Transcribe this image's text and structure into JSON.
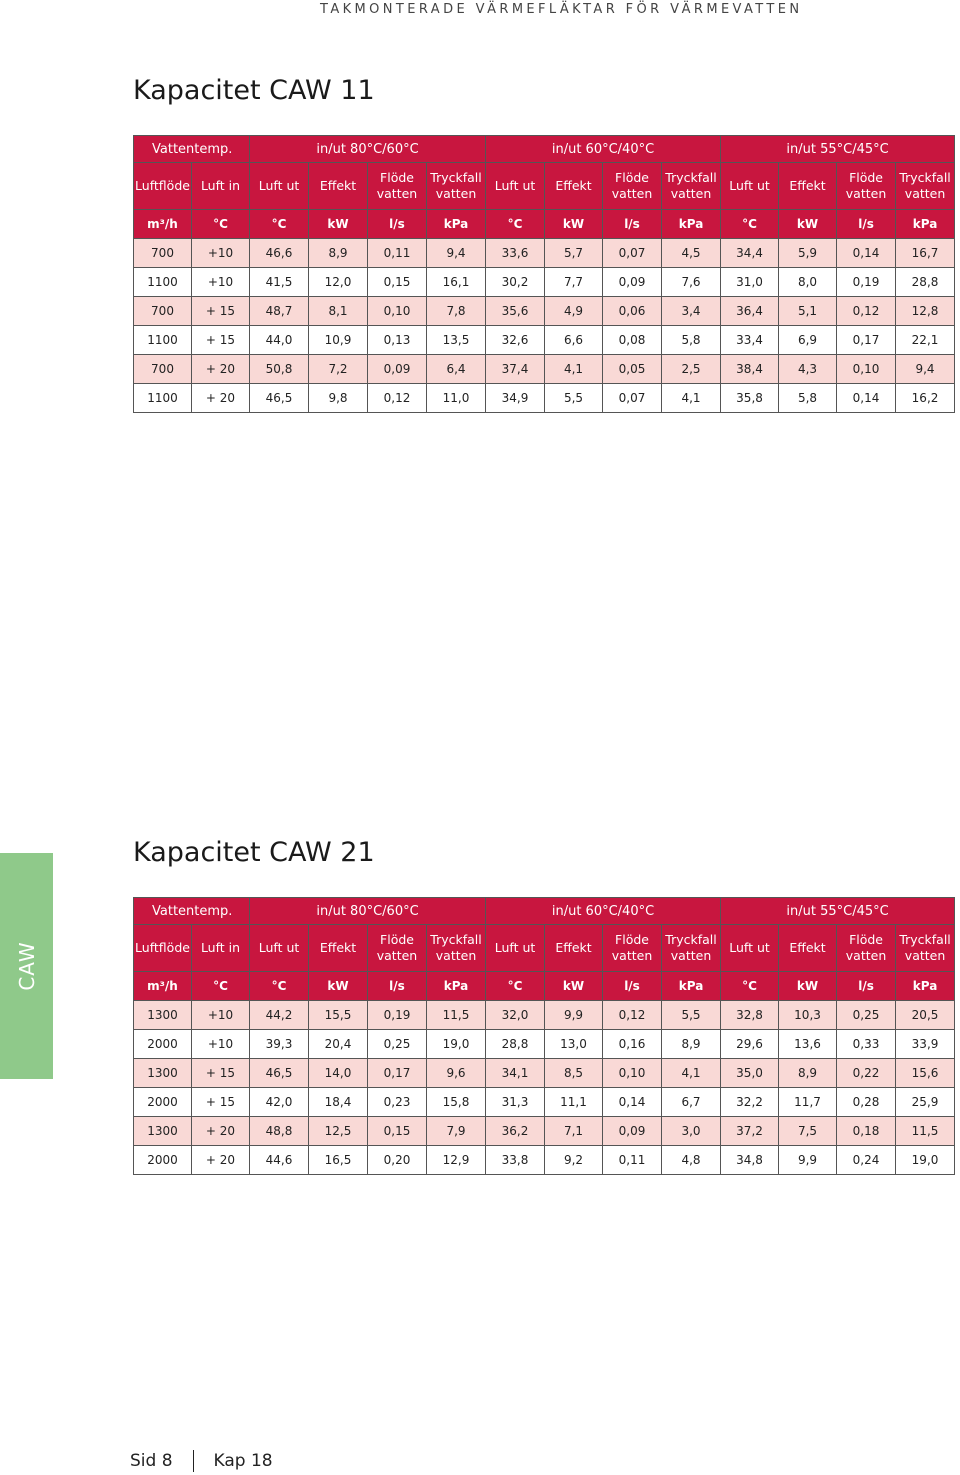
{
  "header": {
    "running_title": "TAKMONTERADE VÄRMEFLÄKTAR FÖR VÄRMEVATTEN"
  },
  "side_tab": {
    "label": "CAW"
  },
  "footer": {
    "page": "Sid 8",
    "chapter": "Kap 18"
  },
  "tables": [
    {
      "title": "Kapacitet CAW 11",
      "group_label": "Vattentemp.",
      "groups": [
        "in/ut 80°C/60°C",
        "in/ut 60°C/40°C",
        "in/ut 55°C/45°C"
      ],
      "columns": [
        "Luftflöde",
        "Luft in",
        "Luft ut",
        "Effekt",
        "Flöde vatten",
        "Tryckfall vatten",
        "Luft ut",
        "Effekt",
        "Flöde vatten",
        "Tryckfall vatten",
        "Luft ut",
        "Effekt",
        "Flöde vatten",
        "Tryckfall vatten"
      ],
      "units": [
        "m³/h",
        "°C",
        "°C",
        "kW",
        "l/s",
        "kPa",
        "°C",
        "kW",
        "l/s",
        "kPa",
        "°C",
        "kW",
        "l/s",
        "kPa"
      ],
      "rows": [
        [
          "700",
          "+10",
          "46,6",
          "8,9",
          "0,11",
          "9,4",
          "33,6",
          "5,7",
          "0,07",
          "4,5",
          "34,4",
          "5,9",
          "0,14",
          "16,7"
        ],
        [
          "1100",
          "+10",
          "41,5",
          "12,0",
          "0,15",
          "16,1",
          "30,2",
          "7,7",
          "0,09",
          "7,6",
          "31,0",
          "8,0",
          "0,19",
          "28,8"
        ],
        [
          "700",
          "+ 15",
          "48,7",
          "8,1",
          "0,10",
          "7,8",
          "35,6",
          "4,9",
          "0,06",
          "3,4",
          "36,4",
          "5,1",
          "0,12",
          "12,8"
        ],
        [
          "1100",
          "+ 15",
          "44,0",
          "10,9",
          "0,13",
          "13,5",
          "32,6",
          "6,6",
          "0,08",
          "5,8",
          "33,4",
          "6,9",
          "0,17",
          "22,1"
        ],
        [
          "700",
          "+ 20",
          "50,8",
          "7,2",
          "0,09",
          "6,4",
          "37,4",
          "4,1",
          "0,05",
          "2,5",
          "38,4",
          "4,3",
          "0,10",
          "9,4"
        ],
        [
          "1100",
          "+ 20",
          "46,5",
          "9,8",
          "0,12",
          "11,0",
          "34,9",
          "5,5",
          "0,07",
          "4,1",
          "35,8",
          "5,8",
          "0,14",
          "16,2"
        ]
      ]
    },
    {
      "title": "Kapacitet CAW 21",
      "group_label": "Vattentemp.",
      "groups": [
        "in/ut 80°C/60°C",
        "in/ut 60°C/40°C",
        "in/ut 55°C/45°C"
      ],
      "columns": [
        "Luftflöde",
        "Luft in",
        "Luft ut",
        "Effekt",
        "Flöde vatten",
        "Tryckfall vatten",
        "Luft ut",
        "Effekt",
        "Flöde vatten",
        "Tryckfall vatten",
        "Luft ut",
        "Effekt",
        "Flöde vatten",
        "Tryckfall vatten"
      ],
      "units": [
        "m³/h",
        "°C",
        "°C",
        "kW",
        "l/s",
        "kPa",
        "°C",
        "kW",
        "l/s",
        "kPa",
        "°C",
        "kW",
        "l/s",
        "kPa"
      ],
      "rows": [
        [
          "1300",
          "+10",
          "44,2",
          "15,5",
          "0,19",
          "11,5",
          "32,0",
          "9,9",
          "0,12",
          "5,5",
          "32,8",
          "10,3",
          "0,25",
          "20,5"
        ],
        [
          "2000",
          "+10",
          "39,3",
          "20,4",
          "0,25",
          "19,0",
          "28,8",
          "13,0",
          "0,16",
          "8,9",
          "29,6",
          "13,6",
          "0,33",
          "33,9"
        ],
        [
          "1300",
          "+ 15",
          "46,5",
          "14,0",
          "0,17",
          "9,6",
          "34,1",
          "8,5",
          "0,10",
          "4,1",
          "35,0",
          "8,9",
          "0,22",
          "15,6"
        ],
        [
          "2000",
          "+ 15",
          "42,0",
          "18,4",
          "0,23",
          "15,8",
          "31,3",
          "11,1",
          "0,14",
          "6,7",
          "32,2",
          "11,7",
          "0,28",
          "25,9"
        ],
        [
          "1300",
          "+ 20",
          "48,8",
          "12,5",
          "0,15",
          "7,9",
          "36,2",
          "7,1",
          "0,09",
          "3,0",
          "37,2",
          "7,5",
          "0,18",
          "11,5"
        ],
        [
          "2000",
          "+ 20",
          "44,6",
          "16,5",
          "0,20",
          "12,9",
          "33,8",
          "9,2",
          "0,11",
          "4,8",
          "34,8",
          "9,9",
          "0,24",
          "19,0"
        ]
      ]
    }
  ],
  "colors": {
    "header_red": "#c8163f",
    "row_pink": "#f9d9d6",
    "tab_green": "#8fc98a"
  }
}
